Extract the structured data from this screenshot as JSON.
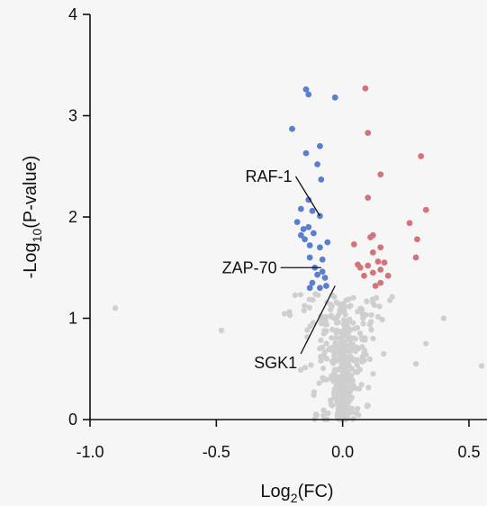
{
  "chart_data": {
    "type": "scatter",
    "title": "",
    "xlabel_base": "Log",
    "xlabel_sub": "2",
    "xlabel_tail": "(FC)",
    "ylabel_pre": "-Log",
    "ylabel_sub": "10",
    "ylabel_tail": "(P-value)",
    "xlim": [
      -1.0,
      0.55
    ],
    "ylim": [
      0,
      4
    ],
    "xticks": [
      -1.0,
      -0.5,
      0.0,
      0.5
    ],
    "xtick_labels": [
      "-1.0",
      "-0.5",
      "0.0",
      "0.5"
    ],
    "yticks": [
      0,
      1,
      2,
      3,
      4
    ],
    "ytick_labels": [
      "0",
      "1",
      "2",
      "3",
      "4"
    ],
    "grid": false,
    "colors": {
      "down": "#5b7fcf",
      "up": "#d27478",
      "ns": "#cfcfcf"
    },
    "series_down": [
      [
        -0.145,
        3.26
      ],
      [
        -0.135,
        3.21
      ],
      [
        -0.03,
        3.18
      ],
      [
        -0.2,
        2.87
      ],
      [
        -0.09,
        2.7
      ],
      [
        -0.145,
        2.63
      ],
      [
        -0.1,
        2.52
      ],
      [
        -0.085,
        2.37
      ],
      [
        -0.135,
        2.17
      ],
      [
        -0.165,
        2.08
      ],
      [
        -0.12,
        2.06
      ],
      [
        -0.09,
        2.01
      ],
      [
        -0.18,
        1.95
      ],
      [
        -0.155,
        1.88
      ],
      [
        -0.135,
        1.9
      ],
      [
        -0.115,
        1.84
      ],
      [
        -0.165,
        1.82
      ],
      [
        -0.15,
        1.78
      ],
      [
        -0.06,
        1.75
      ],
      [
        -0.13,
        1.72
      ],
      [
        -0.09,
        1.7
      ],
      [
        -0.13,
        1.6
      ],
      [
        -0.08,
        1.58
      ],
      [
        -0.11,
        1.5
      ],
      [
        -0.08,
        1.46
      ],
      [
        -0.1,
        1.43
      ],
      [
        -0.07,
        1.4
      ],
      [
        -0.12,
        1.35
      ],
      [
        -0.13,
        1.3
      ],
      [
        -0.09,
        1.3
      ],
      [
        -0.065,
        1.32
      ]
    ],
    "series_up": [
      [
        0.09,
        3.27
      ],
      [
        0.1,
        2.83
      ],
      [
        0.15,
        2.42
      ],
      [
        0.1,
        2.19
      ],
      [
        0.31,
        2.6
      ],
      [
        0.33,
        2.07
      ],
      [
        0.265,
        1.94
      ],
      [
        0.295,
        1.78
      ],
      [
        0.12,
        1.82
      ],
      [
        0.11,
        1.8
      ],
      [
        0.045,
        1.73
      ],
      [
        0.15,
        1.7
      ],
      [
        0.29,
        1.6
      ],
      [
        0.12,
        1.65
      ],
      [
        0.06,
        1.53
      ],
      [
        0.07,
        1.5
      ],
      [
        0.1,
        1.52
      ],
      [
        0.14,
        1.56
      ],
      [
        0.165,
        1.55
      ],
      [
        0.15,
        1.48
      ],
      [
        0.12,
        1.45
      ],
      [
        0.18,
        1.42
      ],
      [
        0.085,
        1.42
      ],
      [
        0.15,
        1.35
      ],
      [
        0.13,
        1.32
      ]
    ],
    "annotations": [
      {
        "label": "RAF-1",
        "point": [
          -0.09,
          2.01
        ],
        "text_at": [
          -0.2,
          2.4
        ],
        "anchor": "end"
      },
      {
        "label": "ZAP-70",
        "point": [
          -0.085,
          1.5
        ],
        "text_at": [
          -0.26,
          1.5
        ],
        "anchor": "end"
      },
      {
        "label": "SGK1",
        "point": [
          -0.03,
          1.32
        ],
        "text_at": [
          -0.18,
          0.65
        ],
        "anchor": "end"
      }
    ]
  }
}
